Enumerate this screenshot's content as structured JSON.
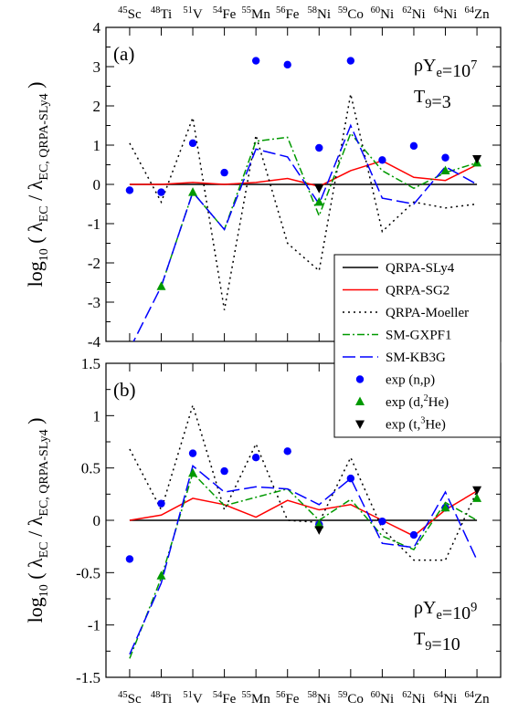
{
  "chart_data": [
    {
      "type": "line",
      "panel_label": "(a)",
      "condition_line1": "ρY_e=10^7",
      "condition_line2": "T_9=3",
      "ylabel": "log10 ( λEC / λEC, QRPA-SLy4 )",
      "ylim": [
        -4,
        4
      ],
      "yticks": [
        4,
        3,
        2,
        1,
        0,
        -1,
        -2,
        -3,
        -4
      ],
      "categories": [
        "45Sc",
        "48Ti",
        "51V",
        "54Fe",
        "55Mn",
        "56Fe",
        "58Ni",
        "59Co",
        "60Ni",
        "62Ni",
        "64Ni",
        "64Zn"
      ],
      "series": [
        {
          "name": "QRPA-SLy4",
          "style": "solid",
          "color": "#000000",
          "values": [
            0,
            0,
            0,
            0,
            0,
            0,
            0,
            0,
            0,
            0,
            0,
            0
          ]
        },
        {
          "name": "QRPA-SG2",
          "style": "solid",
          "color": "#ff0000",
          "values": [
            0.0,
            0.0,
            0.05,
            0.0,
            0.05,
            0.15,
            -0.05,
            0.35,
            0.6,
            0.18,
            0.1,
            0.5
          ]
        },
        {
          "name": "QRPA-Moeller",
          "style": "dotted",
          "color": "#000000",
          "values": [
            1.05,
            -0.45,
            1.7,
            -3.2,
            1.25,
            -1.5,
            -2.2,
            2.3,
            -1.2,
            -0.45,
            -0.6,
            -0.5
          ]
        },
        {
          "name": "SM-GXPF1",
          "style": "dashdot",
          "color": "#009900",
          "values": [
            null,
            -2.6,
            -0.2,
            -1.15,
            1.1,
            1.2,
            -0.8,
            1.3,
            0.35,
            -0.1,
            0.3,
            0.55
          ]
        },
        {
          "name": "SM-KB3G",
          "style": "dashed",
          "color": "#0000ff",
          "values": [
            -4.2,
            -2.6,
            -0.2,
            -1.15,
            0.9,
            0.7,
            -0.5,
            1.5,
            -0.35,
            -0.5,
            0.45,
            0.0
          ]
        }
      ],
      "markers": [
        {
          "name": "exp (n,p)",
          "shape": "circle",
          "color": "#0000ff",
          "values": [
            -0.15,
            -0.2,
            1.05,
            0.3,
            3.15,
            3.05,
            0.93,
            3.15,
            0.62,
            0.98,
            0.68,
            null
          ]
        },
        {
          "name": "exp (d,2He)",
          "shape": "triangle-up",
          "color": "#009900",
          "values": [
            null,
            -2.6,
            -0.2,
            null,
            null,
            null,
            -0.45,
            null,
            null,
            null,
            0.35,
            0.55
          ]
        },
        {
          "name": "exp (t,3He)",
          "shape": "triangle-down",
          "color": "#000000",
          "values": [
            null,
            null,
            null,
            null,
            null,
            null,
            -0.1,
            null,
            null,
            null,
            null,
            0.65
          ]
        }
      ]
    },
    {
      "type": "line",
      "panel_label": "(b)",
      "condition_line1": "ρY_e=10^9",
      "condition_line2": "T_9=10",
      "ylabel": "log10 ( λEC / λEC, QRPA-SLy4 )",
      "ylim": [
        -1.5,
        1.5
      ],
      "yticks": [
        1.5,
        1,
        0.5,
        0,
        -0.5,
        -1,
        -1.5
      ],
      "categories": [
        "45Sc",
        "48Ti",
        "51V",
        "54Fe",
        "55Mn",
        "56Fe",
        "58Ni",
        "59Co",
        "60Ni",
        "62Ni",
        "64Ni",
        "64Zn"
      ],
      "series": [
        {
          "name": "QRPA-SLy4",
          "style": "solid",
          "color": "#000000",
          "values": [
            0,
            0,
            0,
            0,
            0,
            0,
            0,
            0,
            0,
            0,
            0,
            0
          ]
        },
        {
          "name": "QRPA-SG2",
          "style": "solid",
          "color": "#ff0000",
          "values": [
            0.0,
            0.05,
            0.21,
            0.15,
            0.03,
            0.19,
            0.1,
            0.15,
            0.0,
            -0.15,
            0.1,
            0.28
          ]
        },
        {
          "name": "QRPA-Moeller",
          "style": "dotted",
          "color": "#000000",
          "values": [
            0.68,
            0.1,
            1.1,
            0.1,
            0.73,
            0.0,
            -0.02,
            0.6,
            -0.08,
            -0.38,
            -0.38,
            0.28
          ]
        },
        {
          "name": "SM-GXPF1",
          "style": "dashdot",
          "color": "#009900",
          "values": [
            -1.32,
            -0.55,
            0.45,
            0.14,
            0.22,
            0.3,
            0.0,
            0.2,
            -0.15,
            -0.28,
            0.17,
            0.0
          ]
        },
        {
          "name": "SM-KB3G",
          "style": "dashed",
          "color": "#0000ff",
          "values": [
            -1.28,
            -0.6,
            0.52,
            0.27,
            0.32,
            0.3,
            0.15,
            0.4,
            -0.22,
            -0.26,
            0.27,
            -0.38
          ]
        }
      ],
      "markers": [
        {
          "name": "exp (n,p)",
          "shape": "circle",
          "color": "#0000ff",
          "values": [
            -0.37,
            0.16,
            0.64,
            0.47,
            0.6,
            0.66,
            -0.04,
            0.4,
            -0.01,
            -0.14,
            0.12,
            null
          ]
        },
        {
          "name": "exp (d,2He)",
          "shape": "triangle-up",
          "color": "#009900",
          "values": [
            null,
            -0.53,
            0.45,
            null,
            null,
            null,
            -0.04,
            null,
            null,
            null,
            0.12,
            0.21
          ]
        },
        {
          "name": "exp (t,3He)",
          "shape": "triangle-down",
          "color": "#000000",
          "values": [
            null,
            null,
            null,
            null,
            null,
            null,
            -0.09,
            null,
            null,
            null,
            null,
            0.29
          ]
        }
      ]
    }
  ],
  "legend": {
    "placement": "panel (a) lower-right",
    "entries": [
      {
        "label": "QRPA-SLy4",
        "kind": "line",
        "style": "solid",
        "color": "#000000"
      },
      {
        "label": "QRPA-SG2",
        "kind": "line",
        "style": "solid",
        "color": "#ff0000"
      },
      {
        "label": "QRPA-Moeller",
        "kind": "line",
        "style": "dotted",
        "color": "#000000"
      },
      {
        "label": "SM-GXPF1",
        "kind": "line",
        "style": "dashdot",
        "color": "#009900"
      },
      {
        "label": "SM-KB3G",
        "kind": "line",
        "style": "dashed",
        "color": "#0000ff"
      },
      {
        "label": "exp (n,p)",
        "kind": "marker",
        "shape": "circle",
        "color": "#0000ff"
      },
      {
        "label": "exp (d,2He)",
        "kind": "marker",
        "shape": "triangle-up",
        "color": "#009900"
      },
      {
        "label": "exp (t,3He)",
        "kind": "marker",
        "shape": "triangle-down",
        "color": "#000000"
      }
    ]
  }
}
